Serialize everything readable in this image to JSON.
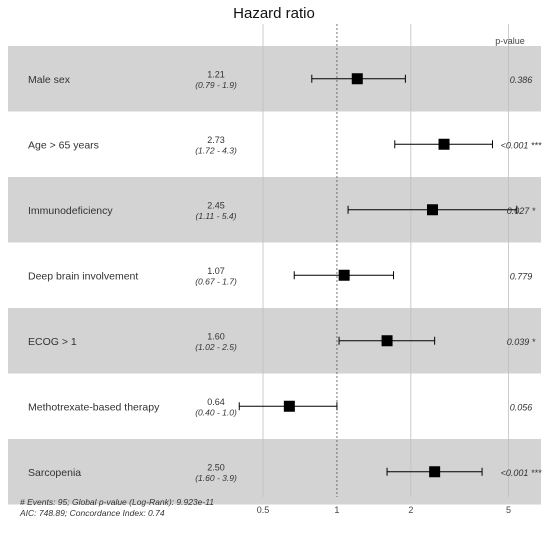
{
  "chart_data": {
    "type": "forest",
    "title": "Hazard ratio",
    "pvalue_header": "p-value",
    "x_scale": "log",
    "xlim": [
      0.36,
      6.0
    ],
    "reference_line": 1,
    "ticks": [
      {
        "value": 0.5,
        "label": "0.5"
      },
      {
        "value": 1,
        "label": "1"
      },
      {
        "value": 2,
        "label": "2"
      },
      {
        "value": 5,
        "label": "5"
      }
    ],
    "rows": [
      {
        "label": "Male sex",
        "hr": 1.21,
        "lo": 0.79,
        "hi": 1.9,
        "hr_text": "1.21",
        "ci_text": "(0.79 - 1.9)",
        "p_text": "0.386",
        "shaded": true
      },
      {
        "label": "Age > 65 years",
        "hr": 2.73,
        "lo": 1.72,
        "hi": 4.3,
        "hr_text": "2.73",
        "ci_text": "(1.72 - 4.3)",
        "p_text": "<0.001 ***",
        "shaded": false
      },
      {
        "label": "Immunodeficiency",
        "hr": 2.45,
        "lo": 1.11,
        "hi": 5.4,
        "hr_text": "2.45",
        "ci_text": "(1.11 - 5.4)",
        "p_text": "0.027 *",
        "shaded": true
      },
      {
        "label": "Deep brain involvement",
        "hr": 1.07,
        "lo": 0.67,
        "hi": 1.7,
        "hr_text": "1.07",
        "ci_text": "(0.67 - 1.7)",
        "p_text": "0.779",
        "shaded": false
      },
      {
        "label": "ECOG > 1",
        "hr": 1.6,
        "lo": 1.02,
        "hi": 2.5,
        "hr_text": "1.60",
        "ci_text": "(1.02 - 2.5)",
        "p_text": "0.039 *",
        "shaded": true
      },
      {
        "label": "Methotrexate-based therapy",
        "hr": 0.64,
        "lo": 0.4,
        "hi": 1.0,
        "hr_text": "0.64",
        "ci_text": "(0.40 - 1.0)",
        "p_text": "0.056",
        "shaded": false
      },
      {
        "label": "Sarcopenia",
        "hr": 2.5,
        "lo": 1.6,
        "hi": 3.9,
        "hr_text": "2.50",
        "ci_text": "(1.60 - 3.9)",
        "p_text": "<0.001 ***",
        "shaded": true
      }
    ],
    "footer": [
      "# Events: 95; Global p-value (Log-Rank): 9.923e-11",
      "AIC: 748.89; Concordance Index: 0.74"
    ],
    "colors": {
      "row_shade": "#d3d3d3",
      "marker": "#000000",
      "grid": "#bfbfbf"
    }
  }
}
